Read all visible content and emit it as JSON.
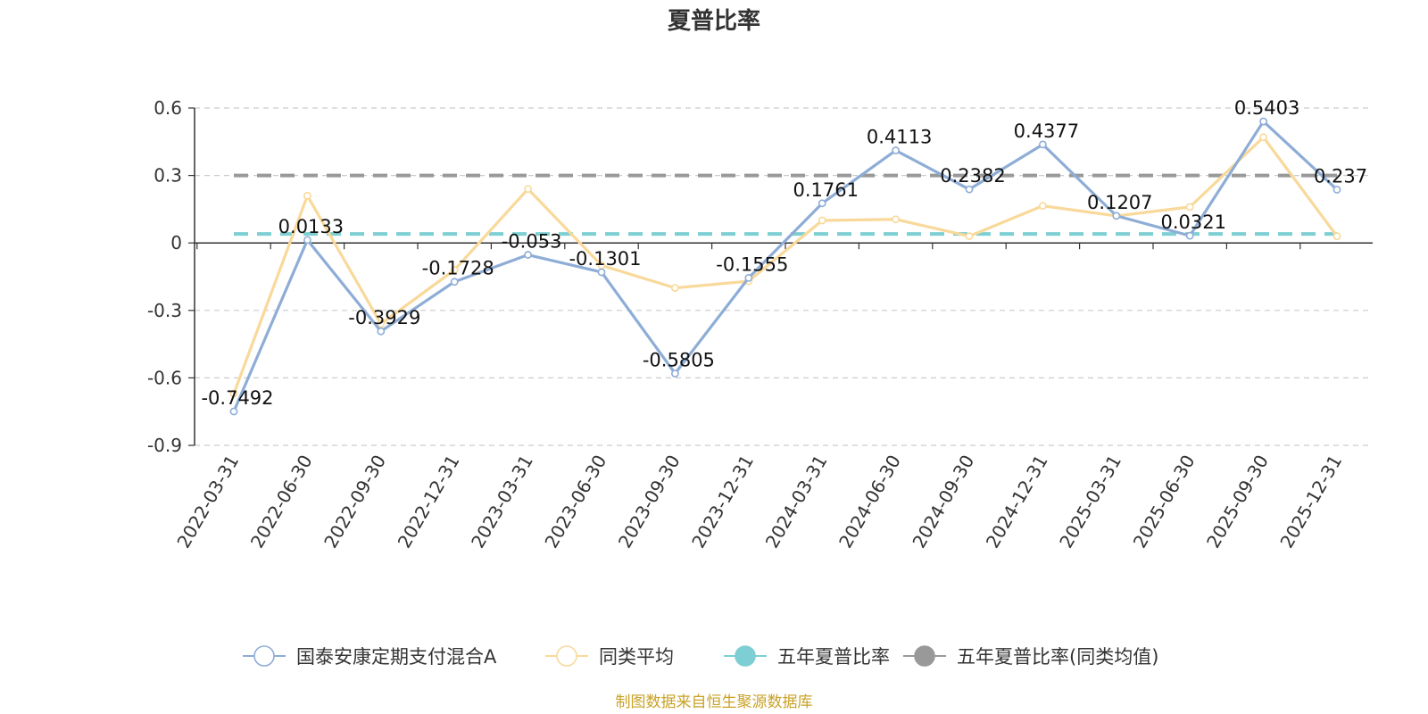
{
  "chart_data": {
    "type": "line",
    "title": "夏普比率",
    "xlabel": "",
    "ylabel": "",
    "categories": [
      "2022-03-31",
      "2022-06-30",
      "2022-09-30",
      "2022-12-31",
      "2023-03-31",
      "2023-06-30",
      "2023-09-30",
      "2023-12-31",
      "2024-03-31",
      "2024-06-30",
      "2024-09-30",
      "2024-12-31",
      "2025-03-31",
      "2025-06-30",
      "2025-09-30",
      "2025-12-31"
    ],
    "ylim": [
      -0.9,
      0.6
    ],
    "yticks": [
      0.6,
      0.3,
      0,
      -0.3,
      -0.6,
      -0.9
    ],
    "ytick_labels": [
      "0.6",
      "0.3",
      "0",
      "-0.3",
      "-0.6",
      "-0.9"
    ],
    "grid": true,
    "legend_position": "bottom-center",
    "series": [
      {
        "name": "国泰安康定期支付混合A",
        "color": "#8eadd6",
        "values": [
          -0.7492,
          0.0133,
          -0.3929,
          -0.1728,
          -0.053,
          -0.1301,
          -0.5805,
          -0.1555,
          0.1761,
          0.4113,
          0.2382,
          0.4377,
          0.1207,
          0.0321,
          0.5403,
          0.237
        ],
        "labels": [
          "-0.7492",
          "0.0133",
          "-0.3929",
          "-0.1728",
          "-0.053",
          "-0.1301",
          "-0.5805",
          "-0.1555",
          "0.1761",
          "0.4113",
          "0.2382",
          "0.4377",
          "0.1207",
          "0.0321",
          "0.5403",
          "0.237"
        ]
      },
      {
        "name": "同类平均",
        "color": "#f9d99a",
        "values": [
          -0.67,
          0.21,
          -0.36,
          -0.12,
          0.24,
          -0.1,
          -0.2,
          -0.17,
          0.1,
          0.105,
          0.03,
          0.165,
          0.12,
          0.16,
          0.47,
          0.03
        ]
      },
      {
        "name": "五年夏普比率",
        "color": "#7ecfd3",
        "type": "reference",
        "value": 0.04
      },
      {
        "name": "五年夏普比率(同类均值)",
        "color": "#999999",
        "type": "reference",
        "value": 0.3
      }
    ]
  },
  "footer": {
    "source": "制图数据来自恒生聚源数据库"
  }
}
